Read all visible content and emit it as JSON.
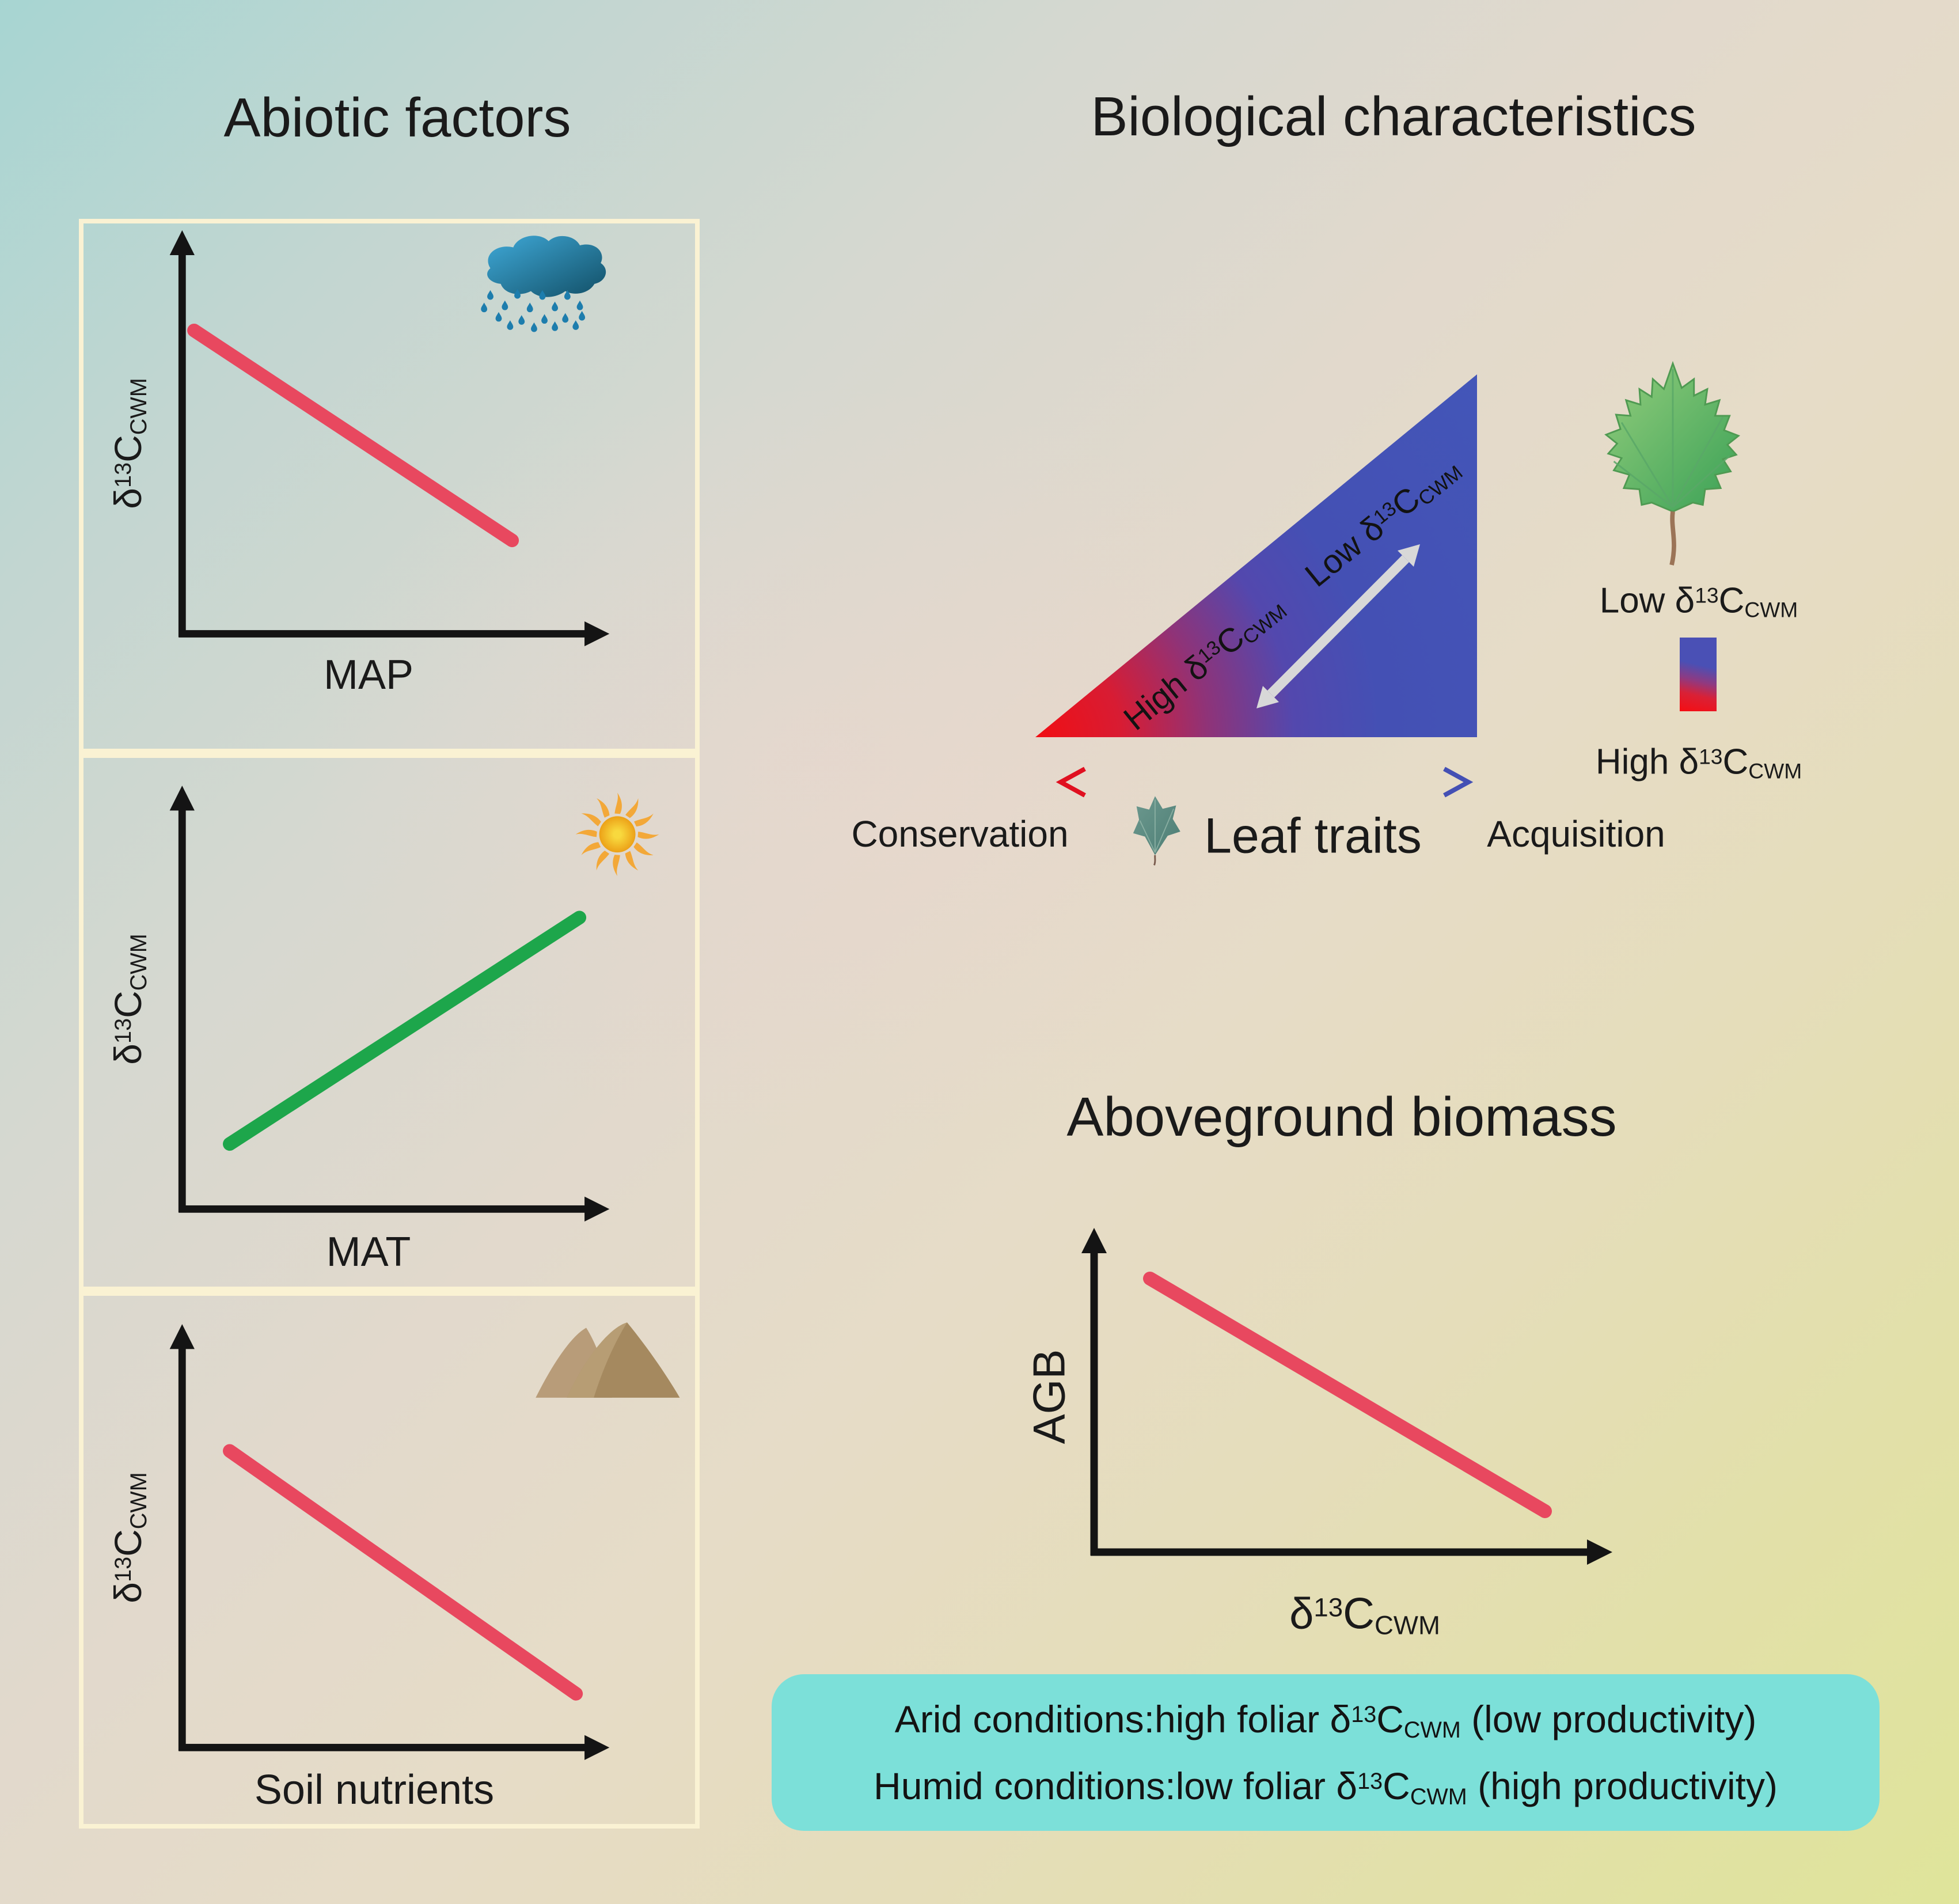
{
  "figure": {
    "type": "conceptual-diagram",
    "topic": "Drivers of community-weighted mean foliar carbon isotope composition and its link to aboveground biomass"
  },
  "colors": {
    "text": "#1a1a1a",
    "axis": "#141414",
    "trend-red": "#e8485f",
    "trend-green": "#1da64b",
    "panel-border": "#faf2d3",
    "info-box-bg": "#7ce0d9",
    "triangle-red": "#ee1116",
    "triangle-blue": "#4450b4",
    "double-arrow-gray": "#d8d8d8",
    "bg-top-left": "#a7d5d2",
    "bg-bottom-right": "#dfe49a"
  },
  "left": {
    "title": "Abiotic factors",
    "y_axis_label": [
      [
        "δ"
      ],
      [
        "13",
        "sup"
      ],
      [
        "C"
      ],
      [
        "CWM",
        "sub"
      ]
    ],
    "panels": [
      {
        "x_label": "MAP",
        "icon": "rain-cloud",
        "relationship": "negative"
      },
      {
        "x_label": "MAT",
        "icon": "sun",
        "relationship": "positive"
      },
      {
        "x_label": "Soil nutrients",
        "icon": "mountains",
        "relationship": "negative"
      }
    ]
  },
  "right": {
    "title": "Biological characteristics",
    "triangle": {
      "high_label": [
        [
          "High "
        ],
        [
          "δ"
        ],
        [
          "13",
          "sup"
        ],
        [
          "C"
        ],
        [
          "CWM",
          "sub"
        ]
      ],
      "low_label": [
        [
          "Low "
        ],
        [
          "δ"
        ],
        [
          "13",
          "sup"
        ],
        [
          "C"
        ],
        [
          "CWM",
          "sub"
        ]
      ],
      "gradient": "red (conservation end) to blue (acquisition end)"
    },
    "traits_row": {
      "left_label": "Conservation",
      "center_label": "Leaf traits",
      "right_label": "Acquisition",
      "icon": "ivy-leaf",
      "arrow": "double-headed, red to blue"
    },
    "legend": {
      "icon": "maple-leaf",
      "low_label": [
        [
          "Low "
        ],
        [
          "δ"
        ],
        [
          "13",
          "sup"
        ],
        [
          "C"
        ],
        [
          "CWM",
          "sub"
        ]
      ],
      "high_label": [
        [
          "High "
        ],
        [
          "δ"
        ],
        [
          "13",
          "sup"
        ],
        [
          "C"
        ],
        [
          "CWM",
          "sub"
        ]
      ],
      "bar_gradient": "blue (top, low) to red (bottom, high)"
    }
  },
  "biomass": {
    "title": "Aboveground biomass",
    "y_axis_label": "AGB",
    "x_axis_label": [
      [
        "δ"
      ],
      [
        "13",
        "sup"
      ],
      [
        "C"
      ],
      [
        "CWM",
        "sub"
      ]
    ],
    "relationship": "negative"
  },
  "info_box": {
    "line1": [
      [
        "Arid conditions:high foliar "
      ],
      [
        "δ"
      ],
      [
        "13",
        "sup"
      ],
      [
        "C"
      ],
      [
        "CWM",
        "sub"
      ],
      [
        " (low productivity)"
      ]
    ],
    "line2": [
      [
        "Humid conditions:low foliar "
      ],
      [
        "δ"
      ],
      [
        "13",
        "sup"
      ],
      [
        "C"
      ],
      [
        "CWM",
        "sub"
      ],
      [
        " (high productivity)"
      ]
    ]
  }
}
